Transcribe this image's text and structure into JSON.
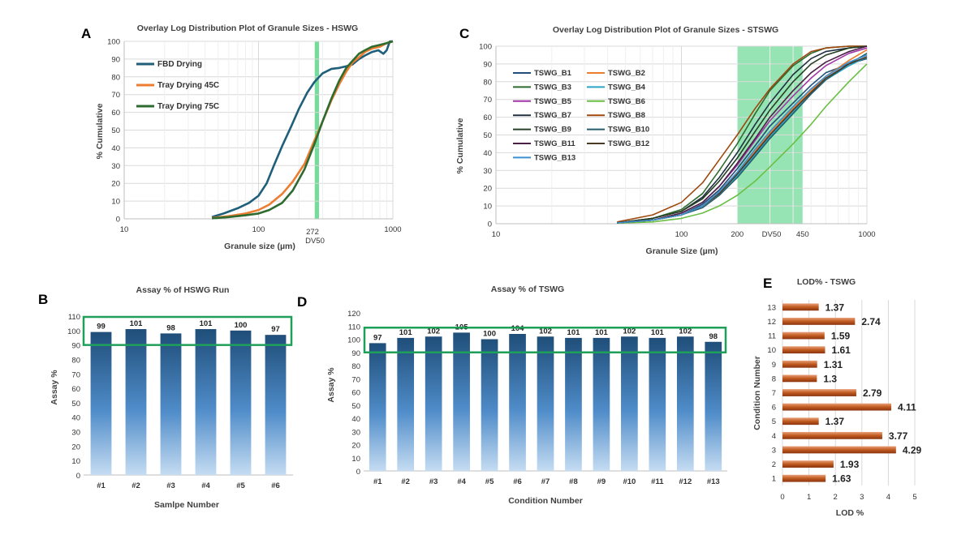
{
  "panels": {
    "A": "A",
    "B": "B",
    "C": "C",
    "D": "D",
    "E": "E"
  },
  "colors": {
    "fbd": "#1f5f7a",
    "tray45": "#ed7d31",
    "tray75": "#2e6b30",
    "band": "#5ed68a",
    "bar_top": "#1f4e79",
    "bar_bottom": "#bdd7ee",
    "spec_box": "#1fa05a",
    "lod_bar": "#b8511a"
  },
  "chart_data": [
    {
      "id": "A",
      "type": "line",
      "title": "Overlay Log Distribution Plot of Granule Sizes - HSWG",
      "xlabel": "Granule size (µm)",
      "ylabel": "% Cumulative",
      "xscale": "log",
      "xlim": [
        10,
        1000
      ],
      "ylim": [
        0,
        100
      ],
      "xticks": [
        "10",
        "100",
        "1000"
      ],
      "yticks": [
        0,
        10,
        20,
        30,
        40,
        50,
        60,
        70,
        80,
        90,
        100
      ],
      "annotations": [
        "272",
        "DV50"
      ],
      "band": {
        "x": [
          262,
          282
        ]
      },
      "grid": true,
      "legend_position": "top-left",
      "series": [
        {
          "name": "FBD Drying",
          "color": "#1f5f7a",
          "x": [
            45,
            55,
            70,
            85,
            100,
            115,
            130,
            150,
            175,
            200,
            230,
            260,
            300,
            350,
            400,
            450,
            500,
            560,
            620,
            700,
            780,
            850,
            900,
            950,
            1000
          ],
          "y": [
            1,
            3,
            6,
            9,
            13,
            20,
            30,
            41,
            52,
            62,
            71,
            77,
            82,
            84.5,
            85,
            86,
            87,
            90,
            92,
            94,
            95,
            93,
            95,
            100,
            100
          ]
        },
        {
          "name": "Tray Drying 45C",
          "color": "#ed7d31",
          "x": [
            45,
            60,
            80,
            100,
            120,
            150,
            180,
            220,
            260,
            300,
            350,
            400,
            450,
            500,
            560,
            620,
            700,
            800,
            900,
            1000
          ],
          "y": [
            0.5,
            1.5,
            3,
            5,
            8,
            14,
            21,
            31,
            44,
            55,
            67,
            76,
            83,
            88,
            91,
            94,
            96,
            97,
            99,
            100
          ]
        },
        {
          "name": "Tray Drying 75C",
          "color": "#2e6b30",
          "x": [
            45,
            60,
            80,
            100,
            120,
            150,
            180,
            220,
            260,
            300,
            350,
            400,
            450,
            500,
            560,
            620,
            700,
            800,
            900,
            1000
          ],
          "y": [
            0.3,
            1,
            2,
            3,
            5,
            9,
            16,
            28,
            42,
            55,
            68,
            78,
            85,
            89,
            93,
            95,
            97,
            98,
            99,
            100
          ]
        }
      ]
    },
    {
      "id": "B",
      "type": "bar",
      "title": "Assay % of HSWG Run",
      "xlabel": "Samlpe Number",
      "ylabel": "Assay %",
      "categories": [
        "#1",
        "#2",
        "#3",
        "#4",
        "#5",
        "#6"
      ],
      "values": [
        99,
        101,
        98,
        101,
        100,
        97
      ],
      "ylim": [
        0,
        110
      ],
      "yticks": [
        0,
        10,
        20,
        30,
        40,
        50,
        60,
        70,
        80,
        90,
        100,
        110
      ],
      "spec_range": [
        90,
        110
      ],
      "grid": false
    },
    {
      "id": "C",
      "type": "line",
      "title": "Overlay Log Distribution Plot of Granule Sizes - STSWG",
      "xlabel": "Granule Size (µm)",
      "ylabel": "% Cumulative",
      "xscale": "log",
      "xlim": [
        10,
        1000
      ],
      "ylim": [
        0,
        100
      ],
      "xticks": [
        "10",
        "100",
        "200",
        "DV50",
        "450",
        "1000"
      ],
      "yticks": [
        0,
        10,
        20,
        30,
        40,
        50,
        60,
        70,
        80,
        90,
        100
      ],
      "band": {
        "x": [
          200,
          450
        ]
      },
      "grid": true,
      "legend_position": "top-left",
      "series": [
        {
          "name": "TSWG_B1",
          "color": "#1f4e79",
          "x": [
            45,
            70,
            100,
            130,
            160,
            200,
            250,
            300,
            400,
            500,
            600,
            800,
            1000
          ],
          "y": [
            0.5,
            2,
            5,
            11,
            19,
            31,
            44,
            55,
            68,
            78,
            85,
            90,
            93
          ]
        },
        {
          "name": "TSWG_B2",
          "color": "#ed7d31",
          "x": [
            45,
            70,
            100,
            130,
            160,
            200,
            250,
            300,
            400,
            500,
            600,
            800,
            1000
          ],
          "y": [
            0.5,
            2,
            5,
            10,
            18,
            29,
            41,
            51,
            65,
            75,
            83,
            92,
            98
          ]
        },
        {
          "name": "TSWG_B3",
          "color": "#2e6b30",
          "x": [
            45,
            70,
            100,
            130,
            160,
            200,
            250,
            300,
            400,
            500,
            600,
            800,
            1000
          ],
          "y": [
            0.5,
            3,
            8,
            17,
            30,
            45,
            62,
            75,
            89,
            96,
            99,
            100,
            100
          ]
        },
        {
          "name": "TSWG_B4",
          "color": "#2aa3c4",
          "x": [
            45,
            70,
            100,
            130,
            160,
            200,
            250,
            300,
            400,
            500,
            600,
            800,
            1000
          ],
          "y": [
            0.5,
            2,
            5,
            10,
            17,
            27,
            39,
            49,
            63,
            73,
            81,
            89,
            94
          ]
        },
        {
          "name": "TSWG_B5",
          "color": "#a237a8",
          "x": [
            45,
            70,
            100,
            130,
            160,
            200,
            250,
            300,
            400,
            500,
            600,
            800,
            1000
          ],
          "y": [
            0.5,
            2,
            6,
            12,
            21,
            33,
            47,
            58,
            72,
            82,
            89,
            96,
            99
          ]
        },
        {
          "name": "TSWG_B6",
          "color": "#6bbf45",
          "x": [
            45,
            70,
            100,
            130,
            160,
            200,
            250,
            300,
            400,
            500,
            600,
            800,
            1000
          ],
          "y": [
            0.3,
            1,
            3,
            6,
            10,
            16,
            24,
            32,
            45,
            56,
            66,
            80,
            90
          ]
        },
        {
          "name": "TSWG_B7",
          "color": "#203040",
          "x": [
            45,
            70,
            100,
            130,
            160,
            200,
            250,
            300,
            400,
            500,
            600,
            800,
            1000
          ],
          "y": [
            0.5,
            3,
            7,
            15,
            26,
            40,
            56,
            68,
            84,
            93,
            97,
            99,
            100
          ]
        },
        {
          "name": "TSWG_B8",
          "color": "#9e480e",
          "x": [
            45,
            70,
            100,
            130,
            160,
            200,
            250,
            300,
            400,
            500,
            600,
            800,
            1000
          ],
          "y": [
            1,
            5,
            12,
            23,
            36,
            50,
            65,
            76,
            90,
            97,
            99,
            100,
            100
          ]
        },
        {
          "name": "TSWG_B9",
          "color": "#264026",
          "x": [
            45,
            70,
            100,
            130,
            160,
            200,
            250,
            300,
            400,
            500,
            600,
            800,
            1000
          ],
          "y": [
            0.5,
            3,
            7,
            14,
            24,
            37,
            52,
            64,
            80,
            90,
            95,
            99,
            100
          ]
        },
        {
          "name": "TSWG_B10",
          "color": "#255e6b",
          "x": [
            45,
            70,
            100,
            130,
            160,
            200,
            250,
            300,
            400,
            500,
            600,
            800,
            1000
          ],
          "y": [
            0.5,
            2,
            5,
            9,
            16,
            26,
            38,
            48,
            62,
            73,
            81,
            90,
            96
          ]
        },
        {
          "name": "TSWG_B11",
          "color": "#4b2045",
          "x": [
            45,
            70,
            100,
            130,
            160,
            200,
            250,
            300,
            400,
            500,
            600,
            800,
            1000
          ],
          "y": [
            0.5,
            2,
            6,
            12,
            21,
            34,
            48,
            60,
            75,
            85,
            91,
            97,
            100
          ]
        },
        {
          "name": "TSWG_B12",
          "color": "#4a3a24",
          "x": [
            45,
            70,
            100,
            130,
            160,
            200,
            250,
            300,
            400,
            500,
            600,
            800,
            1000
          ],
          "y": [
            0.5,
            2,
            5,
            10,
            17,
            28,
            40,
            50,
            64,
            74,
            82,
            90,
            94
          ]
        },
        {
          "name": "TSWG_B13",
          "color": "#3f8fcf",
          "x": [
            45,
            70,
            100,
            130,
            160,
            200,
            250,
            300,
            400,
            500,
            600,
            800,
            1000
          ],
          "y": [
            0.5,
            2,
            5,
            10,
            18,
            29,
            42,
            52,
            66,
            76,
            83,
            91,
            95
          ]
        }
      ]
    },
    {
      "id": "D",
      "type": "bar",
      "title": "Assay % of TSWG",
      "xlabel": "Condition  Number",
      "ylabel": "Assay %",
      "categories": [
        "#1",
        "#2",
        "#3",
        "#4",
        "#5",
        "#6",
        "#7",
        "#8",
        "#9",
        "#10",
        "#11",
        "#12",
        "#13"
      ],
      "values": [
        97,
        101,
        102,
        105,
        100,
        104,
        102,
        101,
        101,
        102,
        101,
        102,
        98
      ],
      "ylim": [
        0,
        120
      ],
      "yticks": [
        0,
        10,
        20,
        30,
        40,
        50,
        60,
        70,
        80,
        90,
        100,
        110,
        120
      ],
      "spec_range": [
        90,
        110
      ],
      "grid": false
    },
    {
      "id": "E",
      "type": "bar",
      "orientation": "horizontal",
      "title": "LOD% - TSWG",
      "xlabel": "LOD %",
      "ylabel": "Condition Number",
      "categories": [
        "1",
        "2",
        "3",
        "4",
        "5",
        "6",
        "7",
        "8",
        "9",
        "10",
        "11",
        "12",
        "13"
      ],
      "values": [
        1.63,
        1.93,
        4.29,
        3.77,
        1.37,
        4.11,
        2.79,
        1.3,
        1.31,
        1.61,
        1.59,
        2.74,
        1.37
      ],
      "xlim": [
        0,
        5
      ],
      "xticks": [
        0,
        1,
        2,
        3,
        4,
        5
      ],
      "grid": true
    }
  ]
}
